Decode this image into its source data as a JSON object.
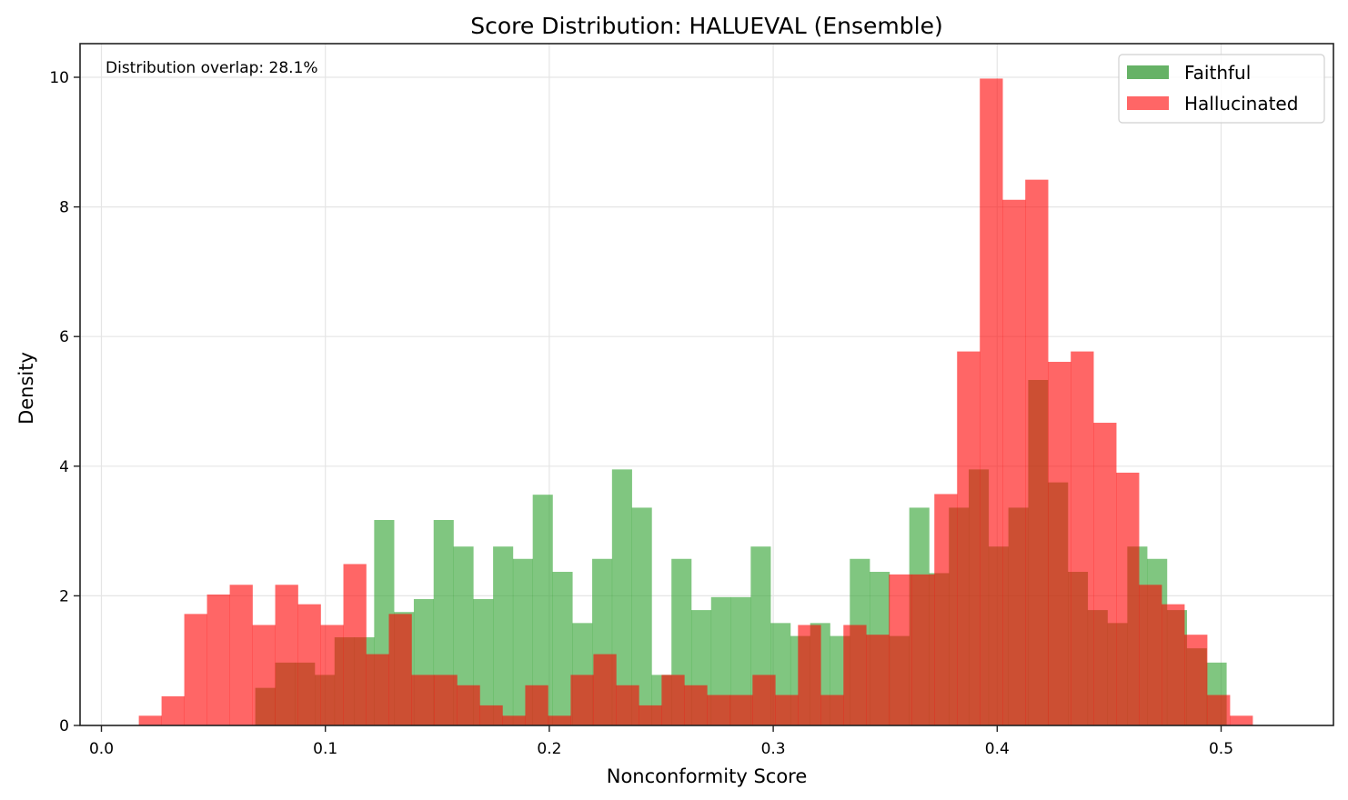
{
  "chart_data": {
    "type": "histogram",
    "title": "Score Distribution: HALUEVAL (Ensemble)",
    "xlabel": "Nonconformity Score",
    "ylabel": "Density",
    "xlim": [
      -0.01,
      0.55
    ],
    "ylim": [
      0,
      10.5
    ],
    "xticks": [
      0.0,
      0.1,
      0.2,
      0.3,
      0.4,
      0.5
    ],
    "xtick_labels": [
      "0.0",
      "0.1",
      "0.2",
      "0.3",
      "0.4",
      "0.5"
    ],
    "yticks": [
      0,
      2,
      4,
      6,
      8,
      10
    ],
    "ytick_labels": [
      "0",
      "2",
      "4",
      "6",
      "8",
      "10"
    ],
    "grid": true,
    "legend_position": "upper right",
    "annotation": "Distribution overlap: 28.1%",
    "series": [
      {
        "name": "Faithful",
        "color": "#2ca02c",
        "render_color": "#66b266",
        "alpha": 0.6,
        "bin_start": 0.0687,
        "bin_width": 0.00885,
        "values": [
          0.58,
          0.97,
          0.97,
          0.78,
          1.36,
          1.36,
          3.17,
          1.75,
          1.95,
          3.17,
          2.76,
          1.95,
          2.76,
          2.57,
          3.56,
          2.37,
          1.58,
          2.57,
          3.95,
          3.36,
          0.78,
          2.57,
          1.78,
          1.98,
          1.98,
          2.76,
          1.58,
          1.38,
          1.58,
          1.38,
          2.57,
          2.37,
          1.38,
          3.36,
          2.35,
          3.36,
          3.95,
          2.76,
          3.36,
          5.33,
          3.75,
          2.37,
          1.78,
          1.58,
          2.76,
          2.57,
          1.78,
          1.19,
          0.97
        ]
      },
      {
        "name": "Hallucinated",
        "color": "#ff0000",
        "render_color": "#ff6666",
        "alpha": 0.6,
        "bin_start": 0.0167,
        "bin_width": 0.01015,
        "values": [
          0.15,
          0.45,
          1.72,
          2.02,
          2.17,
          1.55,
          2.17,
          1.87,
          1.55,
          2.49,
          1.1,
          1.72,
          0.78,
          0.78,
          0.62,
          0.31,
          0.15,
          0.62,
          0.15,
          0.78,
          1.1,
          0.62,
          0.31,
          0.78,
          0.62,
          0.47,
          0.47,
          0.78,
          0.47,
          1.55,
          0.47,
          1.55,
          1.4,
          2.33,
          2.33,
          3.57,
          5.77,
          9.98,
          8.11,
          8.42,
          5.61,
          5.77,
          4.67,
          3.9,
          2.17,
          1.87,
          1.4,
          0.47,
          0.15
        ]
      }
    ]
  },
  "legend": {
    "items": [
      {
        "label": "Faithful",
        "color": "#66b266"
      },
      {
        "label": "Hallucinated",
        "color": "#ff6666"
      }
    ]
  },
  "overlap_color": "#c24829"
}
